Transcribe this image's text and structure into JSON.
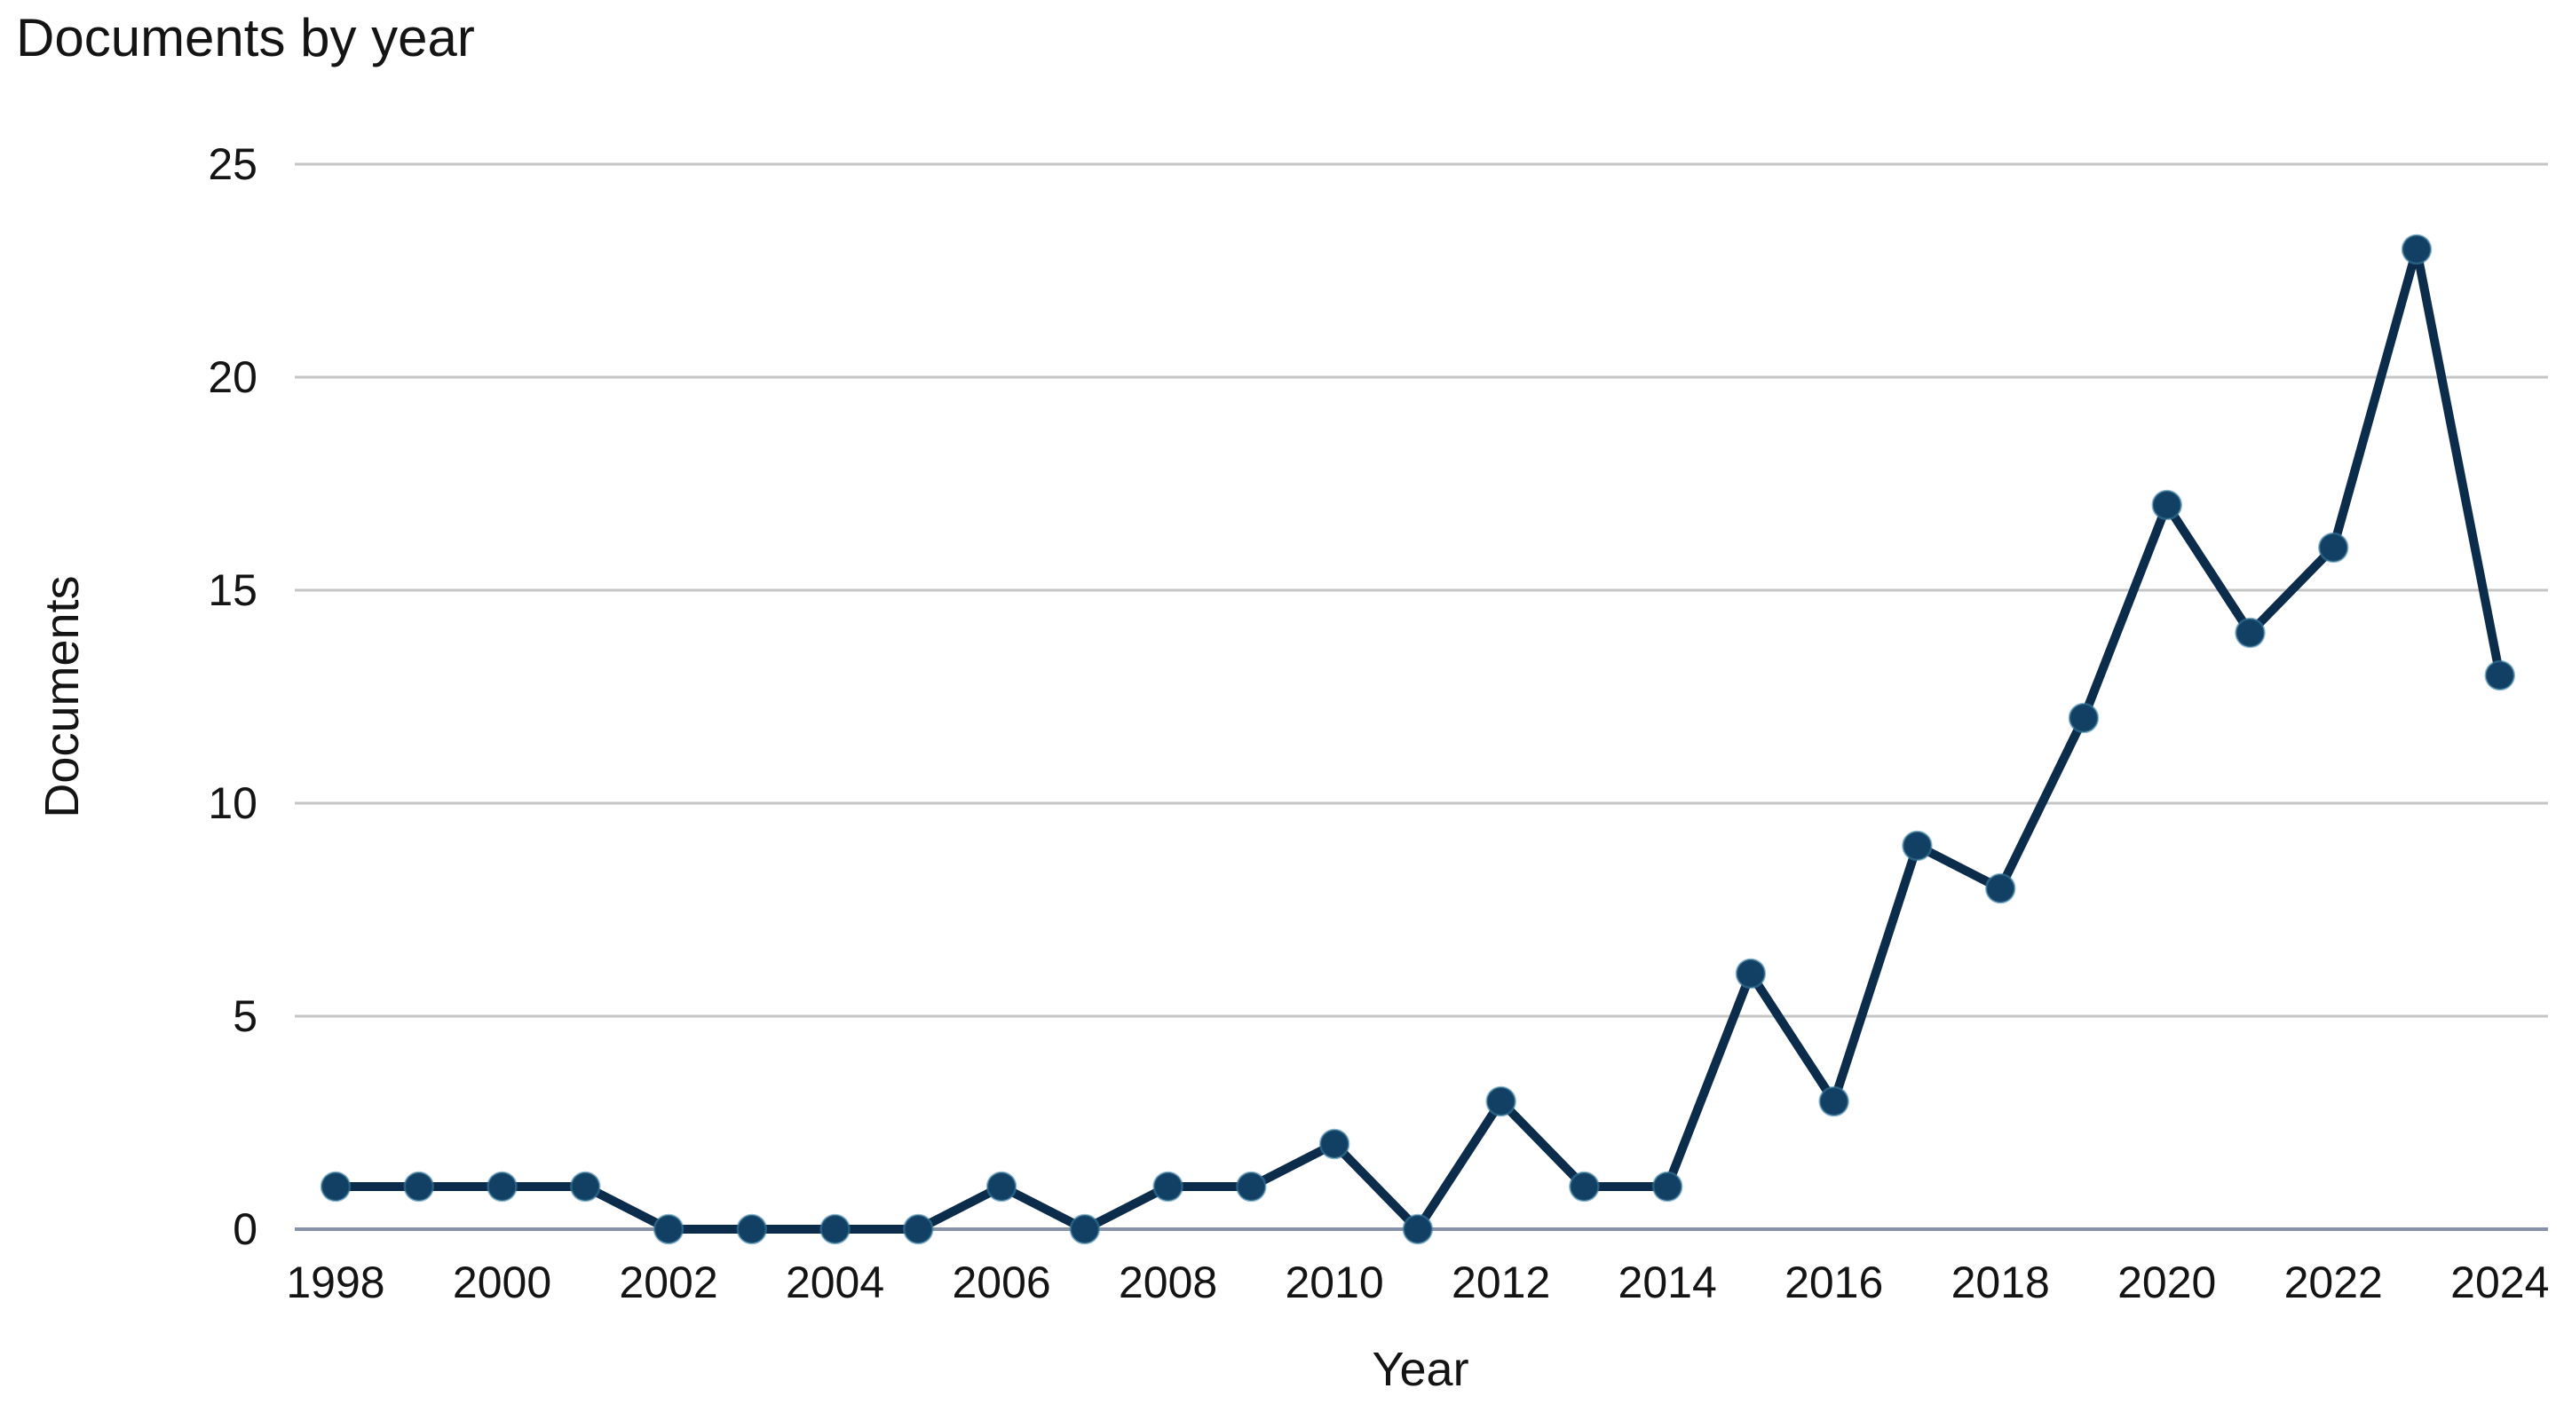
{
  "title": "Documents by year",
  "y_axis": {
    "title": "Documents",
    "ticks": [
      25,
      20,
      15,
      10,
      5,
      0
    ]
  },
  "x_axis": {
    "title": "Year",
    "tick_labels": [
      "1998",
      "2000",
      "2002",
      "2004",
      "2006",
      "2008",
      "2010",
      "2012",
      "2014",
      "2016",
      "2018",
      "2020",
      "2022",
      "2024"
    ]
  },
  "chart_data": {
    "type": "line",
    "title": "Documents by year",
    "xlabel": "Year",
    "ylabel": "Documents",
    "x": [
      1998,
      1999,
      2000,
      2001,
      2002,
      2003,
      2004,
      2005,
      2006,
      2007,
      2008,
      2009,
      2010,
      2011,
      2012,
      2013,
      2014,
      2015,
      2016,
      2017,
      2018,
      2019,
      2020,
      2021,
      2022,
      2023,
      2024
    ],
    "values": [
      1,
      1,
      1,
      1,
      0,
      0,
      0,
      0,
      1,
      0,
      1,
      1,
      2,
      0,
      3,
      1,
      1,
      6,
      3,
      9,
      8,
      12,
      17,
      14,
      16,
      23,
      13
    ],
    "y_ticks": [
      0,
      5,
      10,
      15,
      20,
      25
    ],
    "x_tick_labels": [
      "1998",
      "2000",
      "2002",
      "2004",
      "2006",
      "2008",
      "2010",
      "2012",
      "2014",
      "2016",
      "2018",
      "2020",
      "2022",
      "2024"
    ],
    "xlim": [
      1998,
      2024
    ],
    "ylim": [
      0,
      25
    ],
    "grid": "horizontal",
    "legend": "none",
    "marker": "circle"
  },
  "colors": {
    "line": "#0c2c4c",
    "marker_fill": "#124064",
    "marker_halo": "#3d7fa0",
    "gridline": "#c5c5c5",
    "axis_line": "#8793a9",
    "text": "#141414",
    "background": "#ffffff"
  }
}
